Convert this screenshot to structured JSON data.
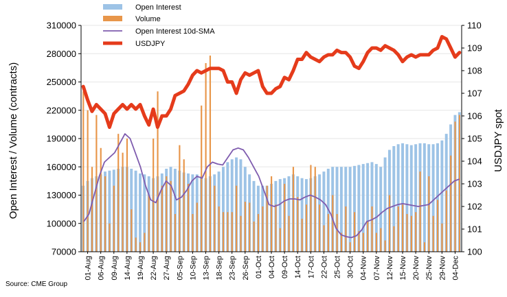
{
  "chart_data": {
    "type": "bar",
    "title": "",
    "source": "Source: CME Group",
    "ylabel_left": "Open Interest / Volume (contracts)",
    "ylabel_right": "USDJPY spot",
    "ylim_left": [
      70000,
      310000
    ],
    "ylim_right": [
      100,
      110
    ],
    "yticks_left": [
      "310000",
      "280000",
      "250000",
      "220000",
      "190000",
      "160000",
      "130000",
      "100000",
      "70000"
    ],
    "yticks_right": [
      "110",
      "109",
      "108",
      "107",
      "106",
      "105",
      "104",
      "103",
      "102",
      "101",
      "100"
    ],
    "xtick_labels": [
      "01-Aug",
      "06-Aug",
      "09-Aug",
      "14-Aug",
      "19-Aug",
      "22-Aug",
      "27-Aug",
      "05-Sep",
      "10-Sep",
      "13-Sep",
      "18-Sep",
      "23-Sep",
      "26-Sep",
      "01-Oct",
      "04-Oct",
      "09-Oct",
      "14-Oct",
      "17-Oct",
      "22-Oct",
      "25-Oct",
      "30-Oct",
      "04-Nov",
      "07-Nov",
      "12-Nov",
      "15-Nov",
      "20-Nov",
      "25-Nov",
      "29-Nov",
      "04-Dec"
    ],
    "n_points": 87,
    "legend_position": "top-left",
    "series": [
      {
        "name": "Open Interest",
        "kind": "bar",
        "color": "#9DC3E6",
        "values": [
          140000,
          145000,
          148000,
          150000,
          152000,
          155000,
          156000,
          157000,
          158000,
          160000,
          160000,
          158000,
          156000,
          153000,
          152000,
          150000,
          148000,
          150000,
          153000,
          158000,
          160000,
          158000,
          156000,
          154000,
          153000,
          152000,
          152000,
          150000,
          148000,
          150000,
          152000,
          155000,
          160000,
          165000,
          168000,
          170000,
          168000,
          160000,
          152000,
          145000,
          140000,
          140000,
          140000,
          142000,
          145000,
          147000,
          148000,
          150000,
          152000,
          150000,
          148000,
          147000,
          148000,
          150000,
          152000,
          155000,
          158000,
          160000,
          160000,
          160000,
          160000,
          160000,
          161000,
          162000,
          163000,
          164000,
          165000,
          163000,
          160000,
          170000,
          178000,
          182000,
          184000,
          185000,
          184000,
          183000,
          184000,
          185000,
          185000,
          184000,
          184000,
          185000,
          188000,
          195000,
          205000,
          215000,
          218000
        ]
      },
      {
        "name": "Volume",
        "kind": "bar",
        "color": "#E8964A",
        "values": [
          240000,
          220000,
          160000,
          215000,
          180000,
          150000,
          100000,
          140000,
          195000,
          175000,
          190000,
          115000,
          85000,
          80000,
          90000,
          130000,
          190000,
          240000,
          140000,
          150000,
          145000,
          110000,
          183000,
          168000,
          142000,
          110000,
          122000,
          225000,
          270000,
          278000,
          140000,
          118000,
          112000,
          112000,
          112000,
          140000,
          108000,
          123000,
          122000,
          102000,
          110000,
          118000,
          140000,
          150000,
          120000,
          95000,
          142000,
          108000,
          160000,
          128000,
          105000,
          120000,
          162000,
          160000,
          120000,
          98000,
          110000,
          130000,
          110000,
          90000,
          118000,
          80000,
          112000,
          92000,
          90000,
          103000,
          118000,
          90000,
          95000,
          82000,
          130000,
          97000,
          118000,
          120000,
          110000,
          108000,
          112000,
          155000,
          80000,
          150000,
          108000,
          125000,
          100000,
          135000,
          172000,
          208000,
          215000
        ]
      },
      {
        "name": "Open Interest 10d-SMA",
        "kind": "line",
        "axis": "left",
        "color": "#7E5BAE",
        "values": [
          102000,
          110000,
          130000,
          150000,
          165000,
          170000,
          175000,
          185000,
          195000,
          190000,
          175000,
          160000,
          140000,
          125000,
          122000,
          135000,
          145000,
          140000,
          125000,
          128000,
          135000,
          145000,
          150000,
          148000,
          160000,
          165000,
          163000,
          162000,
          170000,
          178000,
          180000,
          178000,
          170000,
          160000,
          150000,
          135000,
          120000,
          118000,
          120000,
          124000,
          126000,
          126000,
          125000,
          128000,
          130000,
          128000,
          125000,
          120000,
          110000,
          95000,
          88000,
          86000,
          85000,
          87000,
          93000,
          102000,
          104000,
          107000,
          112000,
          116000,
          118000,
          120000,
          121000,
          120000,
          119000,
          118000,
          119000,
          120000,
          125000,
          130000,
          135000,
          140000,
          145000,
          147000
        ]
      },
      {
        "name": "USDJPY",
        "kind": "line",
        "axis": "right",
        "color": "#E53B1B",
        "values": [
          107.3,
          106.7,
          106.2,
          106.5,
          106.3,
          106.1,
          105.5,
          106.1,
          106.3,
          106.5,
          106.3,
          106.5,
          106.3,
          106.5,
          106.0,
          105.6,
          106.3,
          105.5,
          106.0,
          106.0,
          106.3,
          106.9,
          107.0,
          107.1,
          107.4,
          107.8,
          108.0,
          107.9,
          108.0,
          108.1,
          108.1,
          108.1,
          108.0,
          107.5,
          107.5,
          107.0,
          107.6,
          107.9,
          107.8,
          107.9,
          108.0,
          107.3,
          107.0,
          107.0,
          107.2,
          107.3,
          107.7,
          107.6,
          108.0,
          108.5,
          108.5,
          108.8,
          108.6,
          108.5,
          108.4,
          108.6,
          108.7,
          108.7,
          108.9,
          108.8,
          108.8,
          108.6,
          108.2,
          108.1,
          108.4,
          108.8,
          109.0,
          109.0,
          108.9,
          109.1,
          109.0,
          108.9,
          108.7,
          108.4,
          108.6,
          108.7,
          108.6,
          108.7,
          108.7,
          108.7,
          108.9,
          109.0,
          109.5,
          109.4,
          109.0,
          108.6,
          108.8
        ]
      }
    ]
  }
}
